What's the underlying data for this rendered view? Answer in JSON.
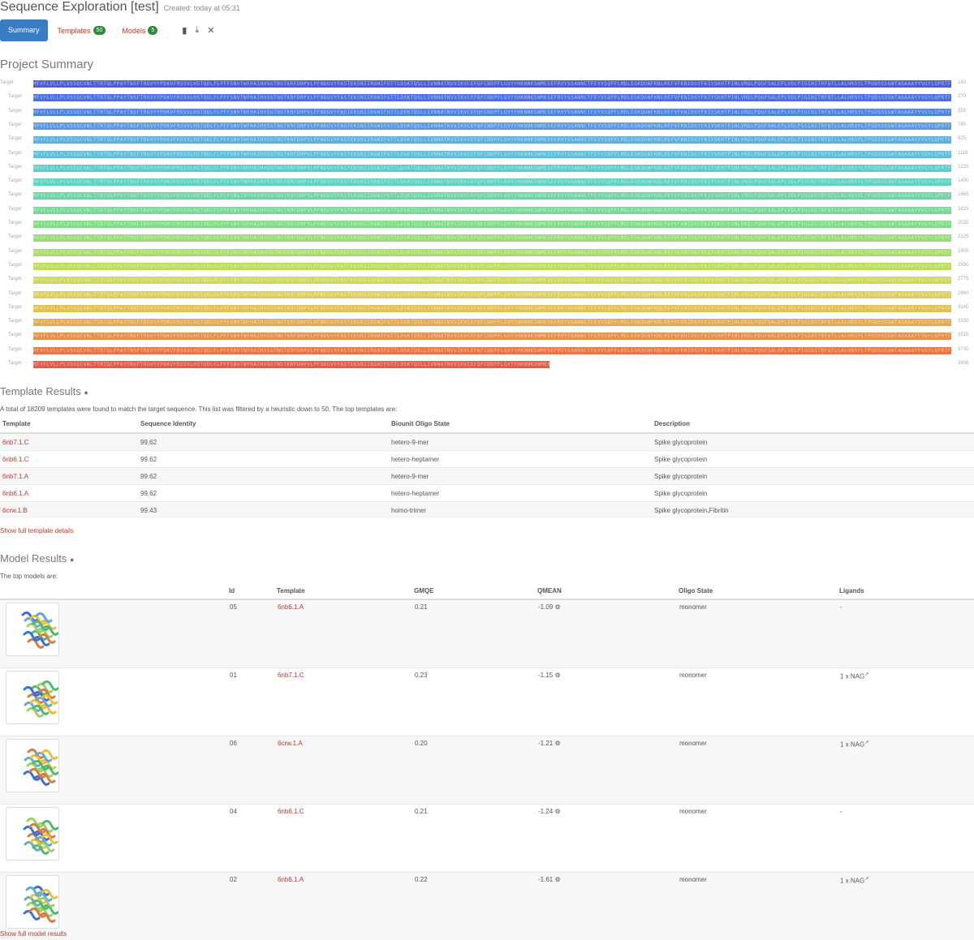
{
  "header": {
    "title": "Sequence Exploration [test]",
    "created": "Created: today at 05:31"
  },
  "tabs": {
    "summary": "Summary",
    "templates": "Templates",
    "templates_count": "50",
    "models": "Models",
    "models_count": "5"
  },
  "project": {
    "title": "Project Summary"
  },
  "target_label": "Target",
  "sequence_rows": [
    {
      "num": "140",
      "fill": 1.0,
      "color": "#4a5fd8",
      "seq": "MFVFLVLLPLVSSQCVNLTTRTQLPPAYTNSFTRGVYYPDKVFRSSVLHSTQDLFLPFFSNVTWFHAIHVSGTNGTKRFDNPVLPFNDGVYFASTEKSNIIRGWIFGTTLDSKTQSLLIVNNATNVVIKVCEFQFCNDPFLGVYYHKNNKSWMESEFRVYSSANNCTFEYVSQPFLMDLEGKQGNFKNLREFVFKNIDGYFKIYSKHTPINLVRDLPQGFSALEPLVDLPIGINITRFQTLLALHRSYLTPGDSSSGWTAGAAAYYVGYLQPRTFLLKYNENGTITDAVDCALDPLSETKCTLKSFTVEKGIYQTSNFRVQPTESIVRFPNITNLCPFGEVFNATRFASVYAWNRKRISNCVADYSVLYNSASFSTFKCYGVSPTKLNDLCFTNVYADSFVIRGDEVRQIAPGQTGKIADYNYKLPDDFTGCVIAWNSNNLDSKVGGNYNYLYRLFRKSNLKPFERDISTEIYQAGSTPCNGVEGFNCYFPLQSYGFQPTNGVGYQPYRVVVLSFELLHAPATVCGPKKSTNLVKNKCVNFNFNGLTGTGVLTESNKKFLPFQQFGRDIADTTDAVRDPQTLEILDITPCSFGGVSVITPGTNTSNQVAVLYQDVNCTEVPVAIHADQLTPTWRVYSTGSNVFQTRAGCLIGAEHVNNSYECDIPIGAGICASYQTQTNSPRRARSVASQSIIAYTMSLGAENSVAYSNNSIAIPTNFTISVTTEILPVSMTKTSVDCTMYICGDSTECSNLLLQYGSFCTQLNRALTGIAVEQDKNTQEVFAQVKQIYKTPPIKDFGGFNFSQILPDPSKPSKRSFIEDLLFNKVTLADAGFIKQYGDCLGDIAARDLICAQKFNGLTVLPPLLTDEMIAQYTSALLAGTITSGWTFGAGAALQIPFAMQMAYRFNGIGVTQNVLYENQKLIANQFNSAIGKIQDSLSSTASALGKLQDVVNQNAQALNTLVKQLSSNFGAISSVLNDILSRLDKVEAEVQIDRLITGRLQSLQTYVTQQLIRAAEIRASANLAATKMSECVLGQSKRVDFCGKGYHLMSFPQSAPHGVVFLHVTYVPAQEKNFTTAPAICHDGKAHFPREGVFVSNGTHWFVTQRNFYEPQIITTDNTFVSGNCDVVIGIVNNTVYDPLQPELDSFKEELDKYFKNHTSPDVDLGDISGINASVVNIQKEIDRLNEVAKNLNESLIDLQELGKYEQ"
    },
    {
      "num": "270",
      "fill": 1.0,
      "color": "#4f6fde",
      "seq": ""
    },
    {
      "num": "355",
      "fill": 1.0,
      "color": "#4f83e0",
      "seq": ""
    },
    {
      "num": "780",
      "fill": 1.0,
      "color": "#5a9ae0",
      "seq": ""
    },
    {
      "num": "925",
      "fill": 1.0,
      "color": "#5faedc",
      "seq": ""
    },
    {
      "num": "1116",
      "fill": 1.0,
      "color": "#5fbed6",
      "seq": ""
    },
    {
      "num": "1235",
      "fill": 1.0,
      "color": "#5fcccc",
      "seq": ""
    },
    {
      "num": "1400",
      "fill": 1.0,
      "color": "#62d2bc",
      "seq": ""
    },
    {
      "num": "1665",
      "fill": 1.0,
      "color": "#6ad6a8",
      "seq": ""
    },
    {
      "num": "1815",
      "fill": 1.0,
      "color": "#74da94",
      "seq": ""
    },
    {
      "num": "2035",
      "fill": 1.0,
      "color": "#82dc84",
      "seq": ""
    },
    {
      "num": "2225",
      "fill": 1.0,
      "color": "#95de74",
      "seq": ""
    },
    {
      "num": "2405",
      "fill": 1.0,
      "color": "#a8de66",
      "seq": ""
    },
    {
      "num": "2590",
      "fill": 1.0,
      "color": "#bcdc5e",
      "seq": ""
    },
    {
      "num": "2775",
      "fill": 1.0,
      "color": "#ced85a",
      "seq": ""
    },
    {
      "num": "2960",
      "fill": 1.0,
      "color": "#dccf58",
      "seq": ""
    },
    {
      "num": "3145",
      "fill": 1.0,
      "color": "#e2bf56",
      "seq": ""
    },
    {
      "num": "3330",
      "fill": 1.0,
      "color": "#e6a852",
      "seq": ""
    },
    {
      "num": "3515",
      "fill": 1.0,
      "color": "#e88e4c",
      "seq": ""
    },
    {
      "num": "3700",
      "fill": 1.0,
      "color": "#e87448",
      "seq": ""
    },
    {
      "num": "3806",
      "fill": 0.5625,
      "color": "#e65a46",
      "seq": ""
    }
  ],
  "templates": {
    "title": "Template Results",
    "note": "A total of 18209 templates were found to match the target sequence. This list was filtered by a heuristic down to 50. The top templates are:",
    "headers": [
      "Template",
      "Sequence Identity",
      "Biounit Oligo State",
      "Description"
    ],
    "rows": [
      [
        "6nb7.1.C",
        "99.62",
        "hetero-9-mer",
        "Spike glycoprotein"
      ],
      [
        "6nb6.1.C",
        "99.62",
        "hetero-heptamer",
        "Spike glycoprotein"
      ],
      [
        "6nb7.1.A",
        "99.62",
        "hetero-9-mer",
        "Spike glycoprotein"
      ],
      [
        "6nb6.1.A",
        "99.62",
        "hetero-heptamer",
        "Spike glycoprotein"
      ],
      [
        "6crw.1.B",
        "99.43",
        "homo-trimer",
        "Spike glycoprotein,Fibritin"
      ]
    ],
    "more": "Show full template details"
  },
  "models": {
    "title": "Model Results",
    "note": "The top models are:",
    "headers": [
      "Id",
      "Template",
      "GMQE",
      "QMEAN",
      "Oligo State",
      "Ligands"
    ],
    "rows": [
      [
        "05",
        "6nb6.1.A",
        "0.21",
        "-1.09",
        "monomer",
        "-"
      ],
      [
        "01",
        "6nb7.1.C",
        "0.23",
        "-1.15",
        "monomer",
        "1 x NAG"
      ],
      [
        "06",
        "6crw.1.A",
        "0.20",
        "-1.21",
        "monomer",
        "1 x NAG"
      ],
      [
        "04",
        "6nb6.1.C",
        "0.21",
        "-1.24",
        "monomer",
        "-"
      ],
      [
        "02",
        "6nb6.1.A",
        "0.22",
        "-1.61",
        "monomer",
        "1 x NAG"
      ]
    ],
    "more": "Show full model results"
  }
}
